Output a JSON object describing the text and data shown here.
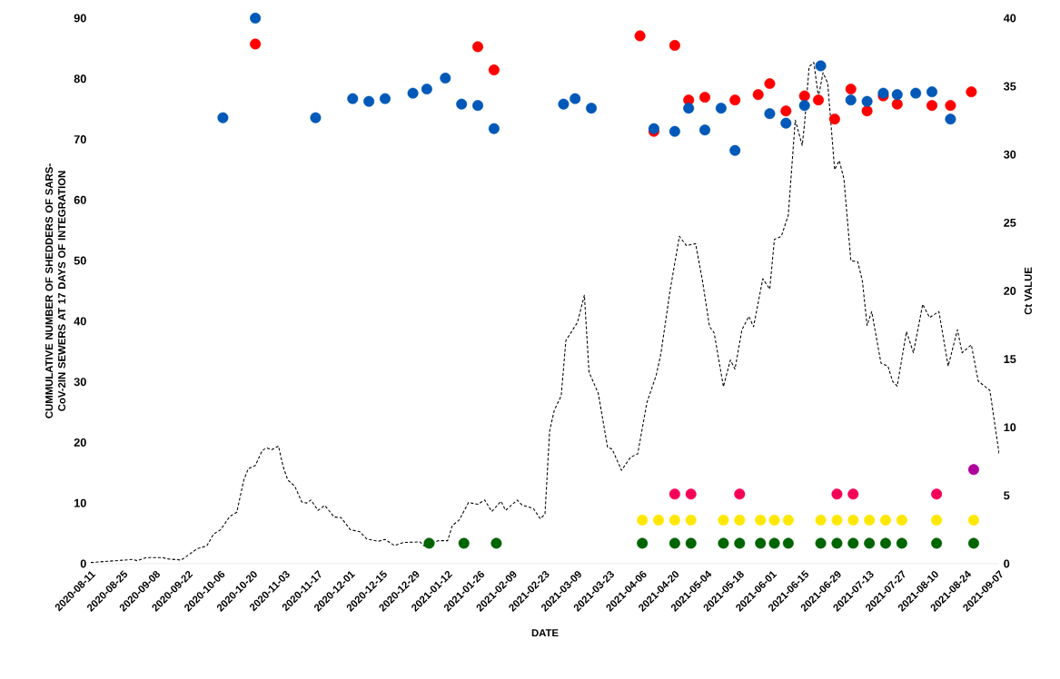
{
  "chart_data": {
    "type": "scatter",
    "xlabel": "DATE",
    "ylabel": "CUMMULATIVE NUMBER OF SHEDDERS OF SARS-CoV-2IN SEWERS AT 17 DAYS OF INTEGRATION",
    "y2label": "Ct VALUE",
    "xlim": [
      "2020-08-11",
      "2021-09-07"
    ],
    "xticks": [
      "2020-08-11",
      "2020-08-25",
      "2020-09-08",
      "2020-09-22",
      "2020-10-06",
      "2020-10-20",
      "2020-11-03",
      "2020-11-17",
      "2020-12-01",
      "2020-12-15",
      "2020-12-29",
      "2021-01-12",
      "2021-01-26",
      "2021-02-09",
      "2021-02-23",
      "2021-03-09",
      "2021-03-23",
      "2021-04-06",
      "2021-04-20",
      "2021-05-04",
      "2021-05-18",
      "2021-06-01",
      "2021-06-15",
      "2021-06-29",
      "2021-07-13",
      "2021-07-27",
      "2021-08-10",
      "2021-08-24",
      "2021-09-07"
    ],
    "ylim": [
      0,
      90
    ],
    "yticks": [
      0,
      10,
      20,
      30,
      40,
      50,
      60,
      70,
      80,
      90
    ],
    "y2lim": [
      0,
      40
    ],
    "y2ticks": [
      0,
      5,
      10,
      15,
      20,
      25,
      30,
      35,
      40
    ],
    "marker": "circle",
    "series": [
      {
        "type": "line",
        "axis": "y",
        "color": "#000000",
        "line_style": "dashed",
        "marker": "none",
        "x": [
          "2020-08-11",
          "2020-08-29",
          "2020-08-31",
          "2020-09-04",
          "2020-09-11",
          "2020-09-13",
          "2020-09-19",
          "2020-09-26",
          "2020-09-30",
          "2020-10-03",
          "2020-10-06",
          "2020-10-10",
          "2020-10-13",
          "2020-10-16",
          "2020-10-18",
          "2020-10-21",
          "2020-10-24",
          "2020-10-26",
          "2020-10-28",
          "2020-10-31",
          "2020-11-02",
          "2020-11-04",
          "2020-11-07",
          "2020-11-10",
          "2020-11-12",
          "2020-11-14",
          "2020-11-17",
          "2020-11-20",
          "2020-11-24",
          "2020-11-27",
          "2020-12-01",
          "2020-12-05",
          "2020-12-08",
          "2020-12-13",
          "2020-12-16",
          "2020-12-20",
          "2020-12-24",
          "2020-12-31",
          "2021-01-02",
          "2021-01-08",
          "2021-01-12",
          "2021-01-14",
          "2021-01-17",
          "2021-01-21",
          "2021-01-25",
          "2021-01-28",
          "2021-01-31",
          "2021-02-04",
          "2021-02-06",
          "2021-02-11",
          "2021-02-13",
          "2021-02-18",
          "2021-02-21",
          "2021-02-23",
          "2021-02-25",
          "2021-02-27",
          "2021-03-02",
          "2021-03-04",
          "2021-03-09",
          "2021-03-12",
          "2021-03-14",
          "2021-03-18",
          "2021-03-22",
          "2021-03-24",
          "2021-03-28",
          "2021-04-01",
          "2021-04-04",
          "2021-04-08",
          "2021-04-12",
          "2021-04-14",
          "2021-04-18",
          "2021-04-22",
          "2021-04-25",
          "2021-04-29",
          "2021-05-02",
          "2021-05-05",
          "2021-05-07",
          "2021-05-11",
          "2021-05-14",
          "2021-05-16",
          "2021-05-19",
          "2021-05-22",
          "2021-05-24",
          "2021-05-28",
          "2021-05-31",
          "2021-06-02",
          "2021-06-05",
          "2021-06-08",
          "2021-06-11",
          "2021-06-14",
          "2021-06-15",
          "2021-06-17",
          "2021-06-19",
          "2021-06-21",
          "2021-06-23",
          "2021-06-25",
          "2021-06-28",
          "2021-06-30",
          "2021-07-02",
          "2021-07-05",
          "2021-07-08",
          "2021-07-10",
          "2021-07-12",
          "2021-07-14",
          "2021-07-18",
          "2021-07-21",
          "2021-07-23",
          "2021-07-25",
          "2021-07-29",
          "2021-08-01",
          "2021-08-05",
          "2021-08-08",
          "2021-08-12",
          "2021-08-16",
          "2021-08-20",
          "2021-08-22",
          "2021-08-26",
          "2021-08-29",
          "2021-09-03",
          "2021-09-07"
        ],
        "values": [
          0.2,
          0.7,
          0.5,
          1.0,
          1.0,
          0.8,
          0.6,
          2.5,
          2.9,
          4.9,
          5.6,
          7.8,
          8.5,
          13.8,
          15.7,
          16.2,
          18.7,
          19.1,
          18.8,
          19.4,
          16.0,
          13.8,
          12.8,
          10.2,
          10.0,
          10.5,
          8.8,
          9.6,
          7.7,
          7.6,
          5.6,
          5.3,
          4.1,
          3.7,
          4.0,
          3.0,
          3.5,
          3.6,
          2.9,
          3.8,
          3.8,
          6.3,
          7.2,
          10.1,
          9.8,
          10.5,
          8.6,
          10.3,
          8.8,
          10.5,
          9.7,
          9.1,
          7.4,
          8.2,
          21.9,
          25.3,
          27.7,
          36.8,
          39.8,
          44.3,
          31.6,
          28.1,
          19.2,
          18.9,
          15.4,
          17.6,
          18.1,
          26.6,
          31.1,
          34.6,
          45.1,
          54.0,
          52.5,
          52.8,
          46.6,
          39.1,
          38.1,
          29.2,
          33.6,
          32.1,
          38.6,
          40.8,
          39.1,
          47.0,
          45.3,
          53.5,
          54.0,
          57.5,
          73.2,
          69.0,
          72.5,
          82.0,
          82.7,
          77.0,
          81.0,
          79.3,
          65.0,
          66.5,
          63.5,
          50.0,
          49.8,
          46.6,
          39.3,
          41.6,
          33.1,
          32.6,
          30.1,
          29.3,
          38.3,
          34.8,
          42.8,
          40.6,
          41.6,
          32.6,
          38.6,
          34.8,
          36.1,
          30.1,
          28.6,
          18.1
        ]
      },
      {
        "axis": "y2",
        "color": "#ff0000",
        "x": [
          "2020-10-21",
          "2021-01-25",
          "2021-02-01",
          "2021-04-05",
          "2021-04-11",
          "2021-04-20",
          "2021-04-26",
          "2021-05-03",
          "2021-05-16",
          "2021-05-26",
          "2021-05-31",
          "2021-06-07",
          "2021-06-15",
          "2021-06-21",
          "2021-06-28",
          "2021-07-05",
          "2021-07-12",
          "2021-07-19",
          "2021-07-25",
          "2021-08-09",
          "2021-08-17",
          "2021-08-26"
        ],
        "values": [
          38.1,
          37.9,
          36.2,
          38.7,
          31.7,
          38.0,
          34.0,
          34.2,
          34.0,
          34.4,
          35.2,
          33.2,
          34.3,
          34.0,
          32.6,
          34.8,
          33.2,
          34.3,
          33.7,
          33.6,
          33.6,
          34.6
        ]
      },
      {
        "axis": "y2",
        "color": "#0058b8",
        "x": [
          "2020-10-07",
          "2020-10-21",
          "2020-11-16",
          "2020-12-02",
          "2020-12-09",
          "2020-12-16",
          "2020-12-28",
          "2021-01-03",
          "2021-01-11",
          "2021-01-18",
          "2021-01-25",
          "2021-02-01",
          "2021-03-03",
          "2021-03-08",
          "2021-03-15",
          "2021-04-11",
          "2021-04-20",
          "2021-04-26",
          "2021-05-03",
          "2021-05-10",
          "2021-05-16",
          "2021-05-31",
          "2021-06-07",
          "2021-06-15",
          "2021-06-22",
          "2021-07-05",
          "2021-07-12",
          "2021-07-19",
          "2021-07-25",
          "2021-08-02",
          "2021-08-09",
          "2021-08-17"
        ],
        "values": [
          32.7,
          40.0,
          32.7,
          34.1,
          33.9,
          34.1,
          34.5,
          34.8,
          35.6,
          33.7,
          33.6,
          31.9,
          33.7,
          34.1,
          33.4,
          31.9,
          31.7,
          33.4,
          31.8,
          33.4,
          30.3,
          33.0,
          32.3,
          33.6,
          36.5,
          34.0,
          33.9,
          34.5,
          34.4,
          34.5,
          34.6,
          32.6
        ]
      },
      {
        "axis": "y2",
        "color": "#006400",
        "x": [
          "2021-01-04",
          "2021-01-19",
          "2021-02-02",
          "2021-04-06",
          "2021-04-20",
          "2021-04-27",
          "2021-05-11",
          "2021-05-18",
          "2021-05-27",
          "2021-06-02",
          "2021-06-08",
          "2021-06-22",
          "2021-06-29",
          "2021-07-06",
          "2021-07-13",
          "2021-07-20",
          "2021-07-27",
          "2021-08-11",
          "2021-08-27"
        ],
        "values": [
          1.5,
          1.5,
          1.5,
          1.5,
          1.5,
          1.5,
          1.5,
          1.5,
          1.5,
          1.5,
          1.5,
          1.5,
          1.5,
          1.5,
          1.5,
          1.5,
          1.5,
          1.5,
          1.5
        ]
      },
      {
        "axis": "y2",
        "color": "#ffe800",
        "x": [
          "2021-04-06",
          "2021-04-13",
          "2021-04-20",
          "2021-04-27",
          "2021-05-11",
          "2021-05-18",
          "2021-05-27",
          "2021-06-02",
          "2021-06-08",
          "2021-06-22",
          "2021-06-29",
          "2021-07-06",
          "2021-07-13",
          "2021-07-20",
          "2021-07-27",
          "2021-08-11",
          "2021-08-27"
        ],
        "values": [
          3.2,
          3.2,
          3.2,
          3.2,
          3.2,
          3.2,
          3.2,
          3.2,
          3.2,
          3.2,
          3.2,
          3.2,
          3.2,
          3.2,
          3.2,
          3.2,
          3.2
        ]
      },
      {
        "axis": "y2",
        "color": "#f50057",
        "x": [
          "2021-04-20",
          "2021-04-27",
          "2021-05-18",
          "2021-06-29",
          "2021-07-06",
          "2021-08-11"
        ],
        "values": [
          5.1,
          5.1,
          5.1,
          5.1,
          5.1,
          5.1
        ]
      },
      {
        "axis": "y2",
        "color": "#b0009b",
        "x": [
          "2021-08-27"
        ],
        "values": [
          6.9
        ]
      }
    ]
  }
}
